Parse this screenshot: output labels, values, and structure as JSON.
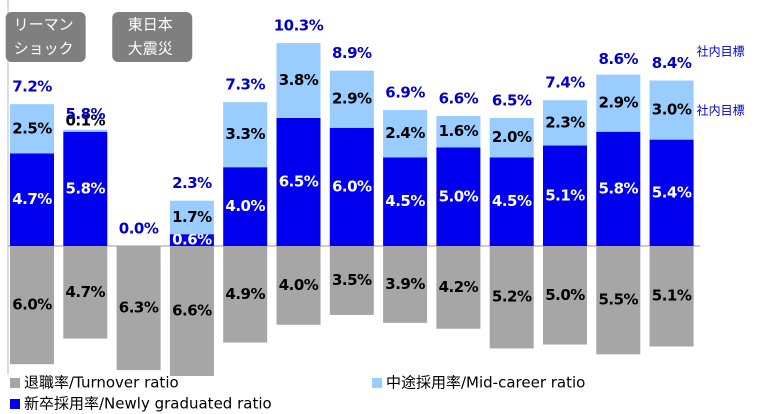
{
  "chart_data": {
    "type": "bar",
    "annotations": [
      {
        "lines": [
          "リーマン",
          "ショック"
        ],
        "bar": 0
      },
      {
        "lines": [
          "東日本",
          "大震災"
        ],
        "bar": 2
      }
    ],
    "target_notes": [
      "社内目標",
      "社内目標"
    ],
    "totals": [
      7.2,
      5.8,
      0.0,
      2.3,
      7.3,
      10.3,
      8.9,
      6.9,
      6.6,
      6.5,
      7.4,
      8.6,
      8.4
    ],
    "total_labels": [
      "7.2%",
      "5.8%",
      "0.0%",
      "2.3%",
      "7.3%",
      "10.3%",
      "8.9%",
      "6.9%",
      "6.6%",
      "6.5%",
      "7.4%",
      "8.6%",
      "8.4%"
    ],
    "series": [
      {
        "name": "新卒採用率/Newly graduated ratio",
        "color": "#0000ee",
        "label_color": "#ffffff",
        "values": [
          4.7,
          5.8,
          null,
          0.6,
          4.0,
          6.5,
          6.0,
          4.5,
          5.0,
          4.5,
          5.1,
          5.8,
          5.4
        ],
        "value_labels": [
          "4.7%",
          "5.8%",
          null,
          "0.6%",
          "4.0%",
          "6.5%",
          "6.0%",
          "4.5%",
          "5.0%",
          "4.5%",
          "5.1%",
          "5.8%",
          "5.4%"
        ]
      },
      {
        "name": "中途採用率/Mid-career ratio",
        "color": "#99ccff",
        "label_color": "#000000",
        "values": [
          2.5,
          0.1,
          null,
          1.7,
          3.3,
          3.8,
          2.9,
          2.4,
          1.6,
          2.0,
          2.3,
          2.9,
          3.0
        ],
        "value_labels": [
          "2.5%",
          "0.1%",
          null,
          "1.7%",
          "3.3%",
          "3.8%",
          "2.9%",
          "2.4%",
          "1.6%",
          "2.0%",
          "2.3%",
          "2.9%",
          "3.0%"
        ]
      },
      {
        "name": "退職率/Turnover ratio",
        "color": "#a6a6a6",
        "label_color": "#000000",
        "values": [
          -6.0,
          -4.7,
          -6.3,
          -6.6,
          -4.9,
          -4.0,
          -3.5,
          -3.9,
          -4.2,
          -5.2,
          -5.0,
          -5.5,
          -5.1
        ],
        "value_labels": [
          "6.0%",
          "4.7%",
          "6.3%",
          "6.6%",
          "4.9%",
          "4.0%",
          "3.5%",
          "3.9%",
          "4.2%",
          "5.2%",
          "5.0%",
          "5.5%",
          "5.1%"
        ]
      }
    ]
  }
}
